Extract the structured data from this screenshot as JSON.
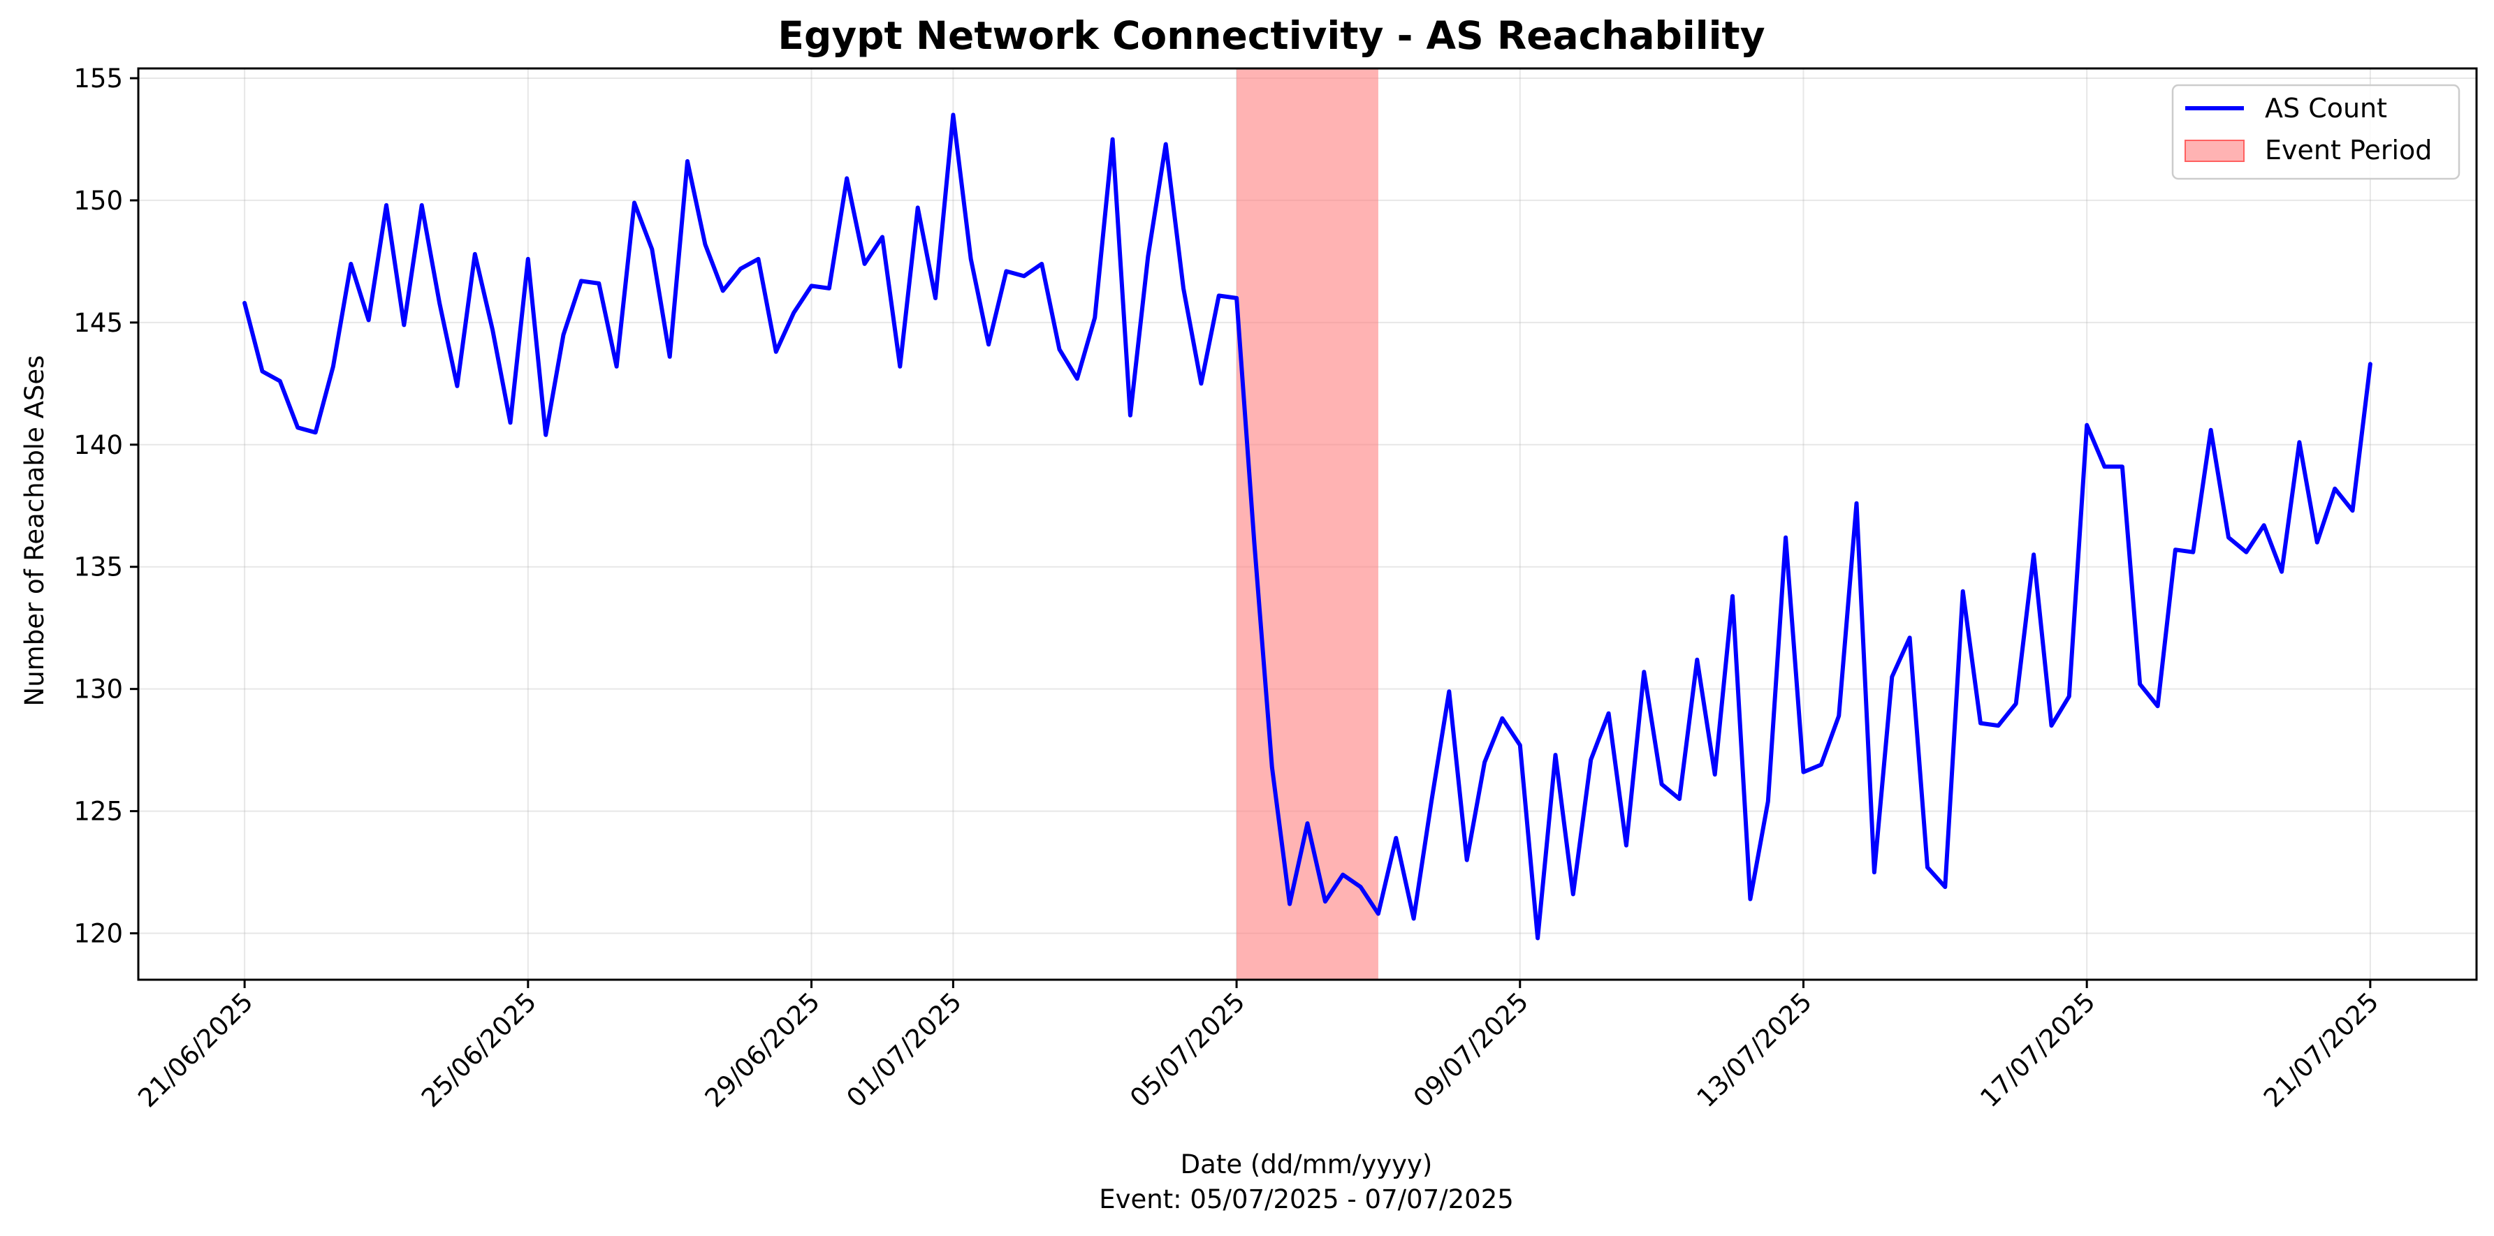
{
  "chart_data": {
    "type": "line",
    "title": "Egypt Network Connectivity - AS Reachability",
    "xlabel": "Date (dd/mm/yyyy)",
    "xlabel_sub": "Event: 05/07/2025 - 07/07/2025",
    "ylabel": "Number of Reachable ASes",
    "x_start": "21/06/2025",
    "x_end": "21/07/2025",
    "xlim": [
      "19/06/2025 12:00",
      "22/07/2025 12:00"
    ],
    "ylim": [
      118.1,
      155.4
    ],
    "y_ticks": [
      120,
      125,
      130,
      135,
      140,
      145,
      150,
      155
    ],
    "x_ticks": [
      "21/06/2025",
      "25/06/2025",
      "29/06/2025",
      "01/07/2025",
      "05/07/2025",
      "09/07/2025",
      "13/07/2025",
      "17/07/2025",
      "21/07/2025"
    ],
    "grid": true,
    "legend_position": "top-right",
    "event": {
      "start": "05/07/2025",
      "end": "07/07/2025",
      "label": "Event Period",
      "color": "#ff8080"
    },
    "series": [
      {
        "name": "AS Count",
        "color": "#0000ff",
        "values": [
          145.8,
          143.0,
          142.6,
          140.7,
          140.5,
          143.2,
          147.4,
          145.1,
          149.8,
          144.9,
          149.8,
          145.8,
          142.4,
          147.8,
          144.7,
          140.9,
          147.6,
          140.4,
          144.5,
          146.7,
          146.6,
          143.2,
          149.9,
          148.0,
          143.6,
          151.6,
          148.2,
          146.3,
          147.2,
          147.6,
          143.8,
          145.4,
          146.5,
          146.4,
          150.9,
          147.4,
          148.5,
          143.2,
          149.7,
          146.0,
          153.5,
          147.6,
          144.1,
          147.1,
          146.9,
          147.4,
          143.9,
          142.7,
          145.2,
          152.5,
          141.2,
          147.7,
          152.3,
          146.4,
          142.5,
          146.1,
          146.0,
          136.0,
          126.8,
          121.2,
          124.5,
          121.3,
          122.4,
          121.9,
          120.8,
          123.9,
          120.6,
          125.4,
          129.9,
          123.0,
          127.0,
          128.8,
          127.7,
          119.8,
          127.3,
          121.6,
          127.1,
          129.0,
          123.6,
          130.7,
          126.1,
          125.5,
          131.2,
          126.5,
          133.8,
          121.4,
          125.4,
          136.2,
          126.6,
          126.9,
          128.9,
          137.6,
          122.5,
          130.5,
          132.1,
          122.7,
          121.9,
          134.0,
          128.6,
          128.5,
          129.4,
          135.5,
          128.5,
          129.7,
          140.8,
          139.1,
          139.1,
          130.2,
          129.3,
          135.7,
          135.6,
          140.6,
          136.2,
          135.6,
          136.7,
          134.8,
          140.1,
          136.0,
          138.2,
          137.3,
          143.3
        ]
      }
    ]
  }
}
